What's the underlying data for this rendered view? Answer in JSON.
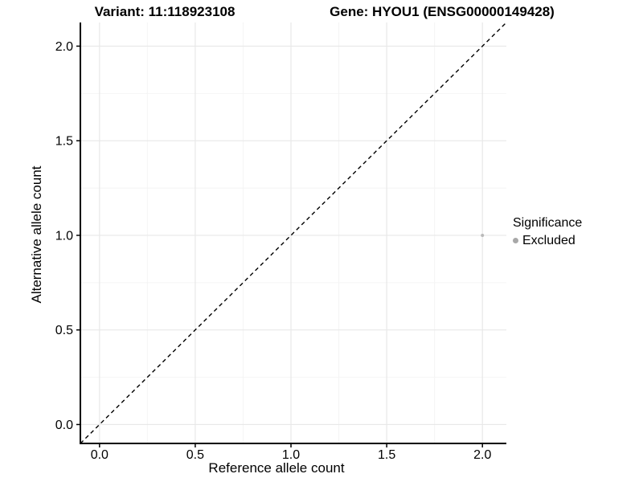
{
  "chart_data": {
    "type": "scatter",
    "title_left": "Variant: 11:118923108",
    "title_right": "Gene: HYOU1 (ENSG00000149428)",
    "xlabel": "Reference allele count",
    "ylabel": "Alternative allele count",
    "xlim": [
      -0.1,
      2.125
    ],
    "ylim": [
      -0.1,
      2.125
    ],
    "x_ticks": {
      "values": [
        0,
        0.5,
        1,
        1.5,
        2
      ],
      "labels": [
        "0.0",
        "0.5",
        "1.0",
        "1.5",
        "2.0"
      ]
    },
    "y_ticks": {
      "values": [
        0,
        0.5,
        1,
        1.5,
        2
      ],
      "labels": [
        "0.0",
        "0.5",
        "1.0",
        "1.5",
        "2.0"
      ]
    },
    "minor_tick_values": [
      0.25,
      0.75,
      1.25,
      1.75
    ],
    "grid": {
      "on": true,
      "major_color": "#e8e8e8",
      "minor_color": "#f4f4f4"
    },
    "reference_line": {
      "kind": "identity y=x",
      "style": "dashed",
      "color": "#000000"
    },
    "series": [
      {
        "name": "Excluded",
        "color": "#b9b9b9",
        "point_radius": 2,
        "points": [
          {
            "x": 2.0,
            "y": 1.0
          }
        ]
      }
    ],
    "legend": {
      "title": "Significance",
      "position": "right",
      "items": [
        {
          "label": "Excluded",
          "color": "#a8a8a8",
          "icon": "point-icon"
        }
      ]
    },
    "axis_color": "#000000",
    "tick_label_color": "#000000"
  }
}
